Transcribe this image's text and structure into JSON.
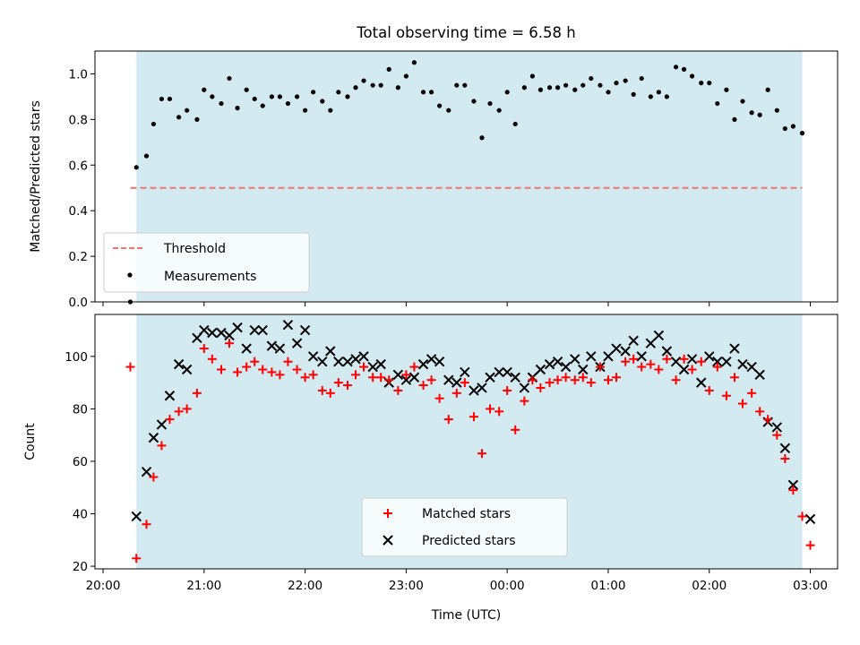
{
  "chart_data": [
    {
      "type": "scatter",
      "title": "Total observing time = 6.58 h",
      "xlabel": "",
      "ylabel": "Matched/Predicted stars",
      "ylim": [
        0,
        1.1
      ],
      "yticks": [
        "0.0",
        "0.2",
        "0.4",
        "0.6",
        "0.8",
        "1.0"
      ],
      "x_unit": "hours since 20:00 UTC",
      "shaded_span": [
        0.33,
        6.92
      ],
      "shade_color": "#d3eaf0",
      "threshold": {
        "label": "Threshold",
        "value": 0.5,
        "x_range": [
          0.27,
          6.92
        ],
        "color": "#f07474"
      },
      "legend": [
        "Threshold",
        "Measurements"
      ],
      "legend_position": "lower-left",
      "series": [
        {
          "name": "Measurements",
          "color": "#000000",
          "points": [
            [
              0.27,
              0.0
            ],
            [
              0.33,
              0.59
            ],
            [
              0.43,
              0.64
            ],
            [
              0.5,
              0.78
            ],
            [
              0.58,
              0.89
            ],
            [
              0.66,
              0.89
            ],
            [
              0.75,
              0.81
            ],
            [
              0.83,
              0.84
            ],
            [
              0.93,
              0.8
            ],
            [
              1.0,
              0.93
            ],
            [
              1.08,
              0.9
            ],
            [
              1.17,
              0.87
            ],
            [
              1.25,
              0.98
            ],
            [
              1.33,
              0.85
            ],
            [
              1.42,
              0.93
            ],
            [
              1.5,
              0.89
            ],
            [
              1.58,
              0.86
            ],
            [
              1.67,
              0.9
            ],
            [
              1.75,
              0.9
            ],
            [
              1.83,
              0.87
            ],
            [
              1.92,
              0.9
            ],
            [
              2.0,
              0.84
            ],
            [
              2.08,
              0.92
            ],
            [
              2.17,
              0.88
            ],
            [
              2.25,
              0.84
            ],
            [
              2.33,
              0.92
            ],
            [
              2.42,
              0.9
            ],
            [
              2.5,
              0.94
            ],
            [
              2.58,
              0.97
            ],
            [
              2.67,
              0.95
            ],
            [
              2.75,
              0.95
            ],
            [
              2.83,
              1.02
            ],
            [
              2.92,
              0.94
            ],
            [
              3.0,
              0.99
            ],
            [
              3.08,
              1.05
            ],
            [
              3.17,
              0.92
            ],
            [
              3.25,
              0.92
            ],
            [
              3.33,
              0.86
            ],
            [
              3.42,
              0.84
            ],
            [
              3.5,
              0.95
            ],
            [
              3.58,
              0.95
            ],
            [
              3.67,
              0.88
            ],
            [
              3.75,
              0.72
            ],
            [
              3.83,
              0.87
            ],
            [
              3.92,
              0.84
            ],
            [
              4.0,
              0.92
            ],
            [
              4.08,
              0.78
            ],
            [
              4.17,
              0.94
            ],
            [
              4.25,
              0.99
            ],
            [
              4.33,
              0.93
            ],
            [
              4.42,
              0.94
            ],
            [
              4.5,
              0.94
            ],
            [
              4.58,
              0.95
            ],
            [
              4.67,
              0.93
            ],
            [
              4.75,
              0.95
            ],
            [
              4.83,
              0.98
            ],
            [
              4.92,
              0.95
            ],
            [
              5.0,
              0.92
            ],
            [
              5.08,
              0.96
            ],
            [
              5.17,
              0.97
            ],
            [
              5.25,
              0.91
            ],
            [
              5.33,
              0.98
            ],
            [
              5.42,
              0.9
            ],
            [
              5.5,
              0.92
            ],
            [
              5.58,
              0.9
            ],
            [
              5.67,
              1.03
            ],
            [
              5.75,
              1.02
            ],
            [
              5.83,
              0.99
            ],
            [
              5.92,
              0.96
            ],
            [
              6.0,
              0.96
            ],
            [
              6.08,
              0.87
            ],
            [
              6.17,
              0.93
            ],
            [
              6.25,
              0.8
            ],
            [
              6.33,
              0.88
            ],
            [
              6.42,
              0.83
            ],
            [
              6.5,
              0.82
            ],
            [
              6.58,
              0.93
            ],
            [
              6.67,
              0.84
            ],
            [
              6.75,
              0.76
            ],
            [
              6.83,
              0.77
            ],
            [
              6.92,
              0.74
            ]
          ]
        }
      ]
    },
    {
      "type": "scatter",
      "title": "",
      "xlabel": "Time (UTC)",
      "ylabel": "Count",
      "ylim": [
        19,
        116
      ],
      "yticks": [
        "20",
        "40",
        "60",
        "80",
        "100"
      ],
      "xticks": [
        "20:00",
        "21:00",
        "22:00",
        "23:00",
        "00:00",
        "01:00",
        "02:00",
        "03:00"
      ],
      "x_unit": "hours since 20:00 UTC",
      "shaded_span": [
        0.33,
        6.92
      ],
      "shade_color": "#d3eaf0",
      "legend": [
        "Matched stars",
        "Predicted stars"
      ],
      "legend_position": "lower-center",
      "series": [
        {
          "name": "Matched stars",
          "marker": "plus",
          "color": "#ff0000",
          "points": [
            [
              0.27,
              96
            ],
            [
              0.33,
              23
            ],
            [
              0.43,
              36
            ],
            [
              0.5,
              54
            ],
            [
              0.58,
              66
            ],
            [
              0.66,
              76
            ],
            [
              0.75,
              79
            ],
            [
              0.83,
              80
            ],
            [
              0.93,
              86
            ],
            [
              1.0,
              103
            ],
            [
              1.08,
              99
            ],
            [
              1.17,
              95
            ],
            [
              1.25,
              105
            ],
            [
              1.33,
              94
            ],
            [
              1.42,
              96
            ],
            [
              1.5,
              98
            ],
            [
              1.58,
              95
            ],
            [
              1.67,
              94
            ],
            [
              1.75,
              93
            ],
            [
              1.83,
              98
            ],
            [
              1.92,
              95
            ],
            [
              2.0,
              92
            ],
            [
              2.08,
              93
            ],
            [
              2.17,
              87
            ],
            [
              2.25,
              86
            ],
            [
              2.33,
              90
            ],
            [
              2.42,
              89
            ],
            [
              2.5,
              93
            ],
            [
              2.58,
              96
            ],
            [
              2.67,
              92
            ],
            [
              2.75,
              92
            ],
            [
              2.83,
              91
            ],
            [
              2.92,
              87
            ],
            [
              3.0,
              93
            ],
            [
              3.08,
              96
            ],
            [
              3.17,
              89
            ],
            [
              3.25,
              91
            ],
            [
              3.33,
              84
            ],
            [
              3.42,
              76
            ],
            [
              3.5,
              86
            ],
            [
              3.58,
              90
            ],
            [
              3.67,
              77
            ],
            [
              3.75,
              63
            ],
            [
              3.83,
              80
            ],
            [
              3.92,
              79
            ],
            [
              4.0,
              87
            ],
            [
              4.08,
              72
            ],
            [
              4.17,
              83
            ],
            [
              4.25,
              91
            ],
            [
              4.33,
              88
            ],
            [
              4.42,
              90
            ],
            [
              4.5,
              91
            ],
            [
              4.58,
              92
            ],
            [
              4.67,
              91
            ],
            [
              4.75,
              92
            ],
            [
              4.83,
              90
            ],
            [
              4.92,
              96
            ],
            [
              5.0,
              91
            ],
            [
              5.08,
              92
            ],
            [
              5.17,
              98
            ],
            [
              5.25,
              99
            ],
            [
              5.33,
              96
            ],
            [
              5.42,
              97
            ],
            [
              5.5,
              95
            ],
            [
              5.58,
              99
            ],
            [
              5.67,
              91
            ],
            [
              5.75,
              99
            ],
            [
              5.83,
              95
            ],
            [
              5.92,
              98
            ],
            [
              6.0,
              87
            ],
            [
              6.08,
              96
            ],
            [
              6.17,
              85
            ],
            [
              6.25,
              92
            ],
            [
              6.33,
              82
            ],
            [
              6.42,
              86
            ],
            [
              6.5,
              79
            ],
            [
              6.58,
              76
            ],
            [
              6.67,
              70
            ],
            [
              6.75,
              61
            ],
            [
              6.83,
              49
            ],
            [
              6.92,
              39
            ],
            [
              7.0,
              28
            ]
          ]
        },
        {
          "name": "Predicted stars",
          "marker": "x",
          "color": "#000000",
          "points": [
            [
              0.33,
              39
            ],
            [
              0.43,
              56
            ],
            [
              0.5,
              69
            ],
            [
              0.58,
              74
            ],
            [
              0.66,
              85
            ],
            [
              0.75,
              97
            ],
            [
              0.83,
              95
            ],
            [
              0.93,
              107
            ],
            [
              1.0,
              110
            ],
            [
              1.08,
              109
            ],
            [
              1.17,
              109
            ],
            [
              1.25,
              108
            ],
            [
              1.33,
              111
            ],
            [
              1.42,
              103
            ],
            [
              1.5,
              110
            ],
            [
              1.58,
              110
            ],
            [
              1.67,
              104
            ],
            [
              1.75,
              103
            ],
            [
              1.83,
              112
            ],
            [
              1.92,
              105
            ],
            [
              2.0,
              110
            ],
            [
              2.08,
              100
            ],
            [
              2.17,
              98
            ],
            [
              2.25,
              102
            ],
            [
              2.33,
              98
            ],
            [
              2.42,
              98
            ],
            [
              2.5,
              99
            ],
            [
              2.58,
              100
            ],
            [
              2.67,
              96
            ],
            [
              2.75,
              97
            ],
            [
              2.83,
              90
            ],
            [
              2.92,
              93
            ],
            [
              3.0,
              91
            ],
            [
              3.08,
              92
            ],
            [
              3.17,
              97
            ],
            [
              3.25,
              99
            ],
            [
              3.33,
              98
            ],
            [
              3.42,
              91
            ],
            [
              3.5,
              90
            ],
            [
              3.58,
              94
            ],
            [
              3.67,
              87
            ],
            [
              3.75,
              88
            ],
            [
              3.83,
              92
            ],
            [
              3.92,
              94
            ],
            [
              4.0,
              94
            ],
            [
              4.08,
              92
            ],
            [
              4.17,
              88
            ],
            [
              4.25,
              92
            ],
            [
              4.33,
              95
            ],
            [
              4.42,
              97
            ],
            [
              4.5,
              98
            ],
            [
              4.58,
              96
            ],
            [
              4.67,
              99
            ],
            [
              4.75,
              95
            ],
            [
              4.83,
              100
            ],
            [
              4.92,
              96
            ],
            [
              5.0,
              100
            ],
            [
              5.08,
              103
            ],
            [
              5.17,
              102
            ],
            [
              5.25,
              106
            ],
            [
              5.33,
              100
            ],
            [
              5.42,
              105
            ],
            [
              5.5,
              108
            ],
            [
              5.58,
              102
            ],
            [
              5.67,
              98
            ],
            [
              5.75,
              95
            ],
            [
              5.83,
              99
            ],
            [
              5.92,
              90
            ],
            [
              6.0,
              100
            ],
            [
              6.08,
              98
            ],
            [
              6.17,
              98
            ],
            [
              6.25,
              103
            ],
            [
              6.33,
              97
            ],
            [
              6.42,
              96
            ],
            [
              6.5,
              93
            ],
            [
              6.58,
              75
            ],
            [
              6.67,
              73
            ],
            [
              6.75,
              65
            ],
            [
              6.83,
              51
            ],
            [
              7.0,
              38
            ]
          ]
        }
      ]
    }
  ]
}
